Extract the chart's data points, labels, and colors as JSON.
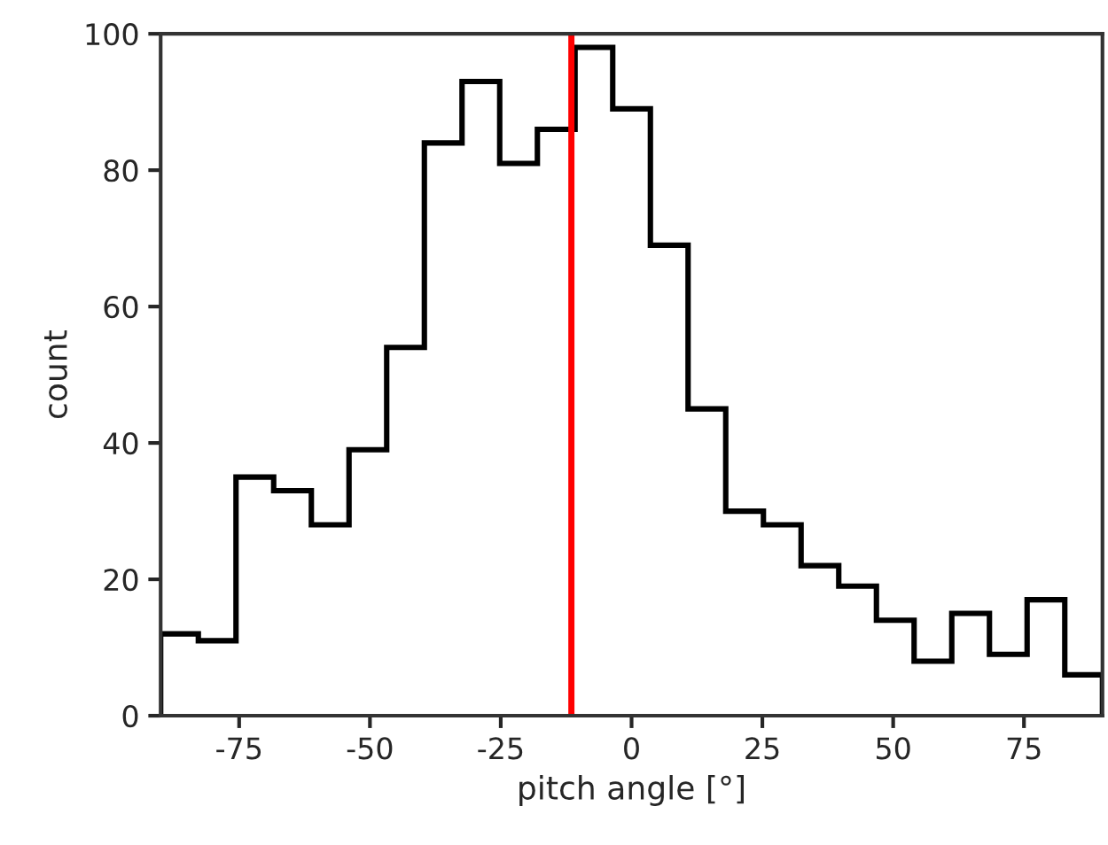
{
  "chart_data": {
    "type": "histogram",
    "xlabel": "pitch angle [°]",
    "ylabel": "count",
    "bins": [
      -90,
      -82.8,
      -75.6,
      -68.4,
      -61.2,
      -54,
      -46.8,
      -39.6,
      -32.4,
      -25.2,
      -18,
      -10.8,
      -3.6,
      3.6,
      10.8,
      18,
      25.2,
      32.4,
      39.6,
      46.8,
      54,
      61.2,
      68.4,
      75.6,
      82.8,
      90
    ],
    "values": [
      12,
      11,
      35,
      33,
      28,
      39,
      54,
      84,
      93,
      81,
      86,
      98,
      89,
      69,
      45,
      30,
      28,
      22,
      19,
      14,
      8,
      15,
      9,
      17,
      6
    ],
    "color": "#000000",
    "xlim": [
      -90,
      90
    ],
    "xticks": [
      -75,
      -50,
      -25,
      0,
      25,
      50,
      75
    ],
    "ylim": [
      0,
      100
    ],
    "yticks": [
      0,
      20,
      40,
      60,
      80,
      100
    ],
    "grid": false,
    "ref_lines": [
      {
        "axis": "x",
        "value": -11.5,
        "color": "#ff0000"
      }
    ]
  }
}
